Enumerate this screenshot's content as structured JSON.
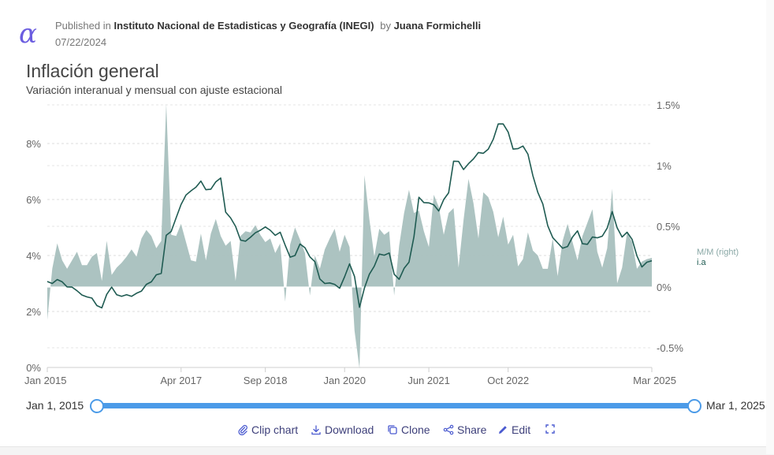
{
  "header": {
    "published_prefix": "Published in",
    "publisher": "Instituto Nacional de Estadisticas y Geografía (INEGI)",
    "by_prefix": "by",
    "author": "Juana Formichelli",
    "date": "07/22/2024",
    "logo_icon": "alpha-logo-icon"
  },
  "chart_data": {
    "type": "line",
    "title": "Inflación general",
    "subtitle": "Variación interanual y mensual con ajuste estacional",
    "x_ticks": [
      "Jan 2015",
      "Apr 2017",
      "Sep 2018",
      "Jan 2020",
      "Jun 2021",
      "Oct 2022",
      "Mar 2025"
    ],
    "y_left": {
      "ticks": [
        "0%",
        "2%",
        "4%",
        "6%",
        "8%"
      ],
      "lim": [
        0,
        9.5
      ]
    },
    "y_right": {
      "ticks": [
        "-0.5%",
        "0%",
        "0.5%",
        "1%",
        "1.5%"
      ],
      "lim": [
        -0.67,
        1.55
      ]
    },
    "x_start": "2015-01",
    "x_end": "2025-03",
    "grid": true,
    "legend": {
      "position": "right",
      "items": [
        "M/M (right)",
        "i.a"
      ]
    },
    "series": [
      {
        "name": "i.a",
        "axis": "left",
        "style": "line",
        "color": "#1f5b52",
        "values": [
          3.07,
          3.0,
          3.14,
          3.06,
          2.88,
          2.87,
          2.74,
          2.59,
          2.52,
          2.48,
          2.21,
          2.13,
          2.61,
          2.87,
          2.6,
          2.54,
          2.6,
          2.54,
          2.65,
          2.73,
          2.97,
          3.06,
          3.31,
          3.36,
          4.72,
          4.86,
          5.35,
          5.82,
          6.16,
          6.31,
          6.44,
          6.66,
          6.35,
          6.37,
          6.63,
          6.77,
          5.55,
          5.34,
          5.04,
          4.55,
          4.51,
          4.65,
          4.81,
          4.9,
          5.02,
          4.9,
          4.72,
          4.83,
          4.37,
          3.94,
          4.0,
          4.41,
          4.28,
          3.95,
          3.78,
          3.16,
          3.0,
          3.02,
          2.97,
          2.83,
          3.24,
          3.7,
          3.25,
          2.15,
          2.84,
          3.33,
          3.62,
          4.05,
          4.01,
          4.09,
          3.33,
          3.15,
          3.54,
          3.76,
          4.67,
          6.08,
          5.89,
          5.88,
          5.81,
          5.59,
          6.0,
          6.24,
          7.37,
          7.36,
          7.07,
          7.28,
          7.45,
          7.68,
          7.65,
          7.8,
          8.15,
          8.7,
          8.7,
          8.41,
          7.8,
          7.82,
          7.91,
          7.62,
          6.85,
          6.25,
          5.84,
          5.06,
          4.64,
          4.45,
          4.26,
          4.32,
          4.66,
          4.88,
          4.42,
          4.4,
          4.66,
          4.63,
          4.69,
          4.98,
          5.57,
          4.99,
          4.66,
          4.83,
          4.58,
          3.99,
          3.59,
          3.76,
          3.81
        ]
      },
      {
        "name": "M/M (right)",
        "axis": "right",
        "style": "area",
        "color": "#a8c0be",
        "values": [
          -0.27,
          0.15,
          0.36,
          0.22,
          0.15,
          0.22,
          0.29,
          0.18,
          0.18,
          0.25,
          0.28,
          0.05,
          0.38,
          0.1,
          0.16,
          0.2,
          0.25,
          0.31,
          0.25,
          0.4,
          0.47,
          0.42,
          0.32,
          0.38,
          1.51,
          0.43,
          0.42,
          0.52,
          0.37,
          0.22,
          0.21,
          0.44,
          0.22,
          0.44,
          0.56,
          0.42,
          0.34,
          0.38,
          0.05,
          0.42,
          0.46,
          0.45,
          0.51,
          0.43,
          0.37,
          0.4,
          0.28,
          0.36,
          -0.12,
          0.35,
          0.49,
          0.39,
          0.28,
          -0.07,
          0.26,
          0.15,
          0.31,
          0.4,
          0.48,
          0.29,
          0.43,
          0.33,
          -0.36,
          -0.67,
          0.92,
          0.56,
          0.25,
          0.48,
          0.43,
          0.46,
          -0.07,
          0.34,
          0.61,
          0.8,
          0.61,
          0.63,
          0.46,
          0.33,
          0.76,
          0.66,
          0.43,
          0.61,
          0.65,
          0.16,
          0.55,
          0.89,
          0.69,
          0.4,
          0.78,
          0.74,
          0.62,
          0.41,
          0.58,
          0.35,
          0.43,
          0.17,
          0.23,
          0.45,
          0.3,
          0.26,
          0.15,
          0.15,
          0.4,
          0.09,
          0.38,
          0.52,
          0.37,
          0.22,
          0.42,
          0.53,
          0.64,
          0.29,
          0.16,
          0.32,
          0.81,
          0.03,
          0.16,
          0.45,
          0.37,
          0.15,
          0.21,
          0.23,
          0.24
        ]
      }
    ]
  },
  "range_slider": {
    "start_label": "Jan 1, 2015",
    "end_label": "Mar 1, 2025"
  },
  "actions": {
    "clip_label": "Clip chart",
    "download_label": "Download",
    "clone_label": "Clone",
    "share_label": "Share",
    "edit_label": "Edit"
  },
  "colors": {
    "accent": "#4c9be8",
    "brand": "#6b5de0",
    "line": "#1f5b52",
    "area": "#a8c0be"
  }
}
